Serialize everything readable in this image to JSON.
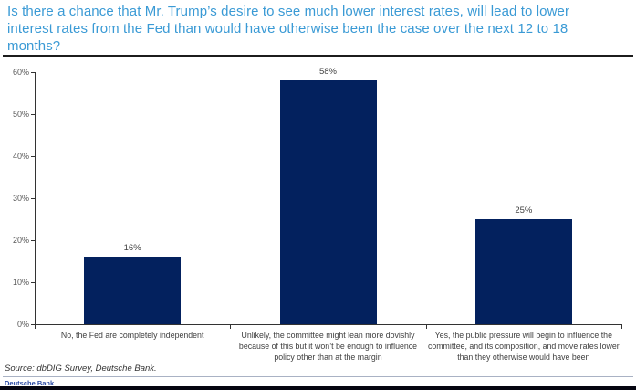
{
  "chart": {
    "title": "Is there a chance that Mr. Trump’s desire to see much lower interest rates, will lead to lower interest rates from the Fed than would have otherwise been the case over the next 12 to 18 months?"
  },
  "chart_data": {
    "type": "bar",
    "title": "Is there a chance that Mr. Trump’s desire to see much lower interest rates, will lead to lower interest rates from the Fed than would have otherwise been the case over the next 12 to 18 months?",
    "categories": [
      "No, the Fed are completely independent",
      "Unlikely, the committee might lean more dovishly because of this but it won’t be enough to influence policy other than at the margin",
      "Yes, the public pressure will begin to influence the committee, and its composition, and move rates lower than they otherwise would have been"
    ],
    "values": [
      16,
      58,
      25
    ],
    "value_labels": [
      "16%",
      "58%",
      "25%"
    ],
    "xlabel": "",
    "ylabel": "",
    "ylim": [
      0,
      60
    ],
    "ytick_step": 10,
    "ytick_labels": [
      "0%",
      "10%",
      "20%",
      "30%",
      "40%",
      "50%",
      "60%"
    ],
    "grid": false,
    "legend": false,
    "bar_color": "#03215e"
  },
  "footer": {
    "source": "Source: dbDIG Survey, Deutsche Bank.",
    "brand": "Deutsche Bank"
  },
  "colors": {
    "title_blue": "#3a9ad5",
    "bar_navy": "#03215e",
    "brand_blue": "#2b4ba5",
    "axis_gray": "#333333"
  }
}
